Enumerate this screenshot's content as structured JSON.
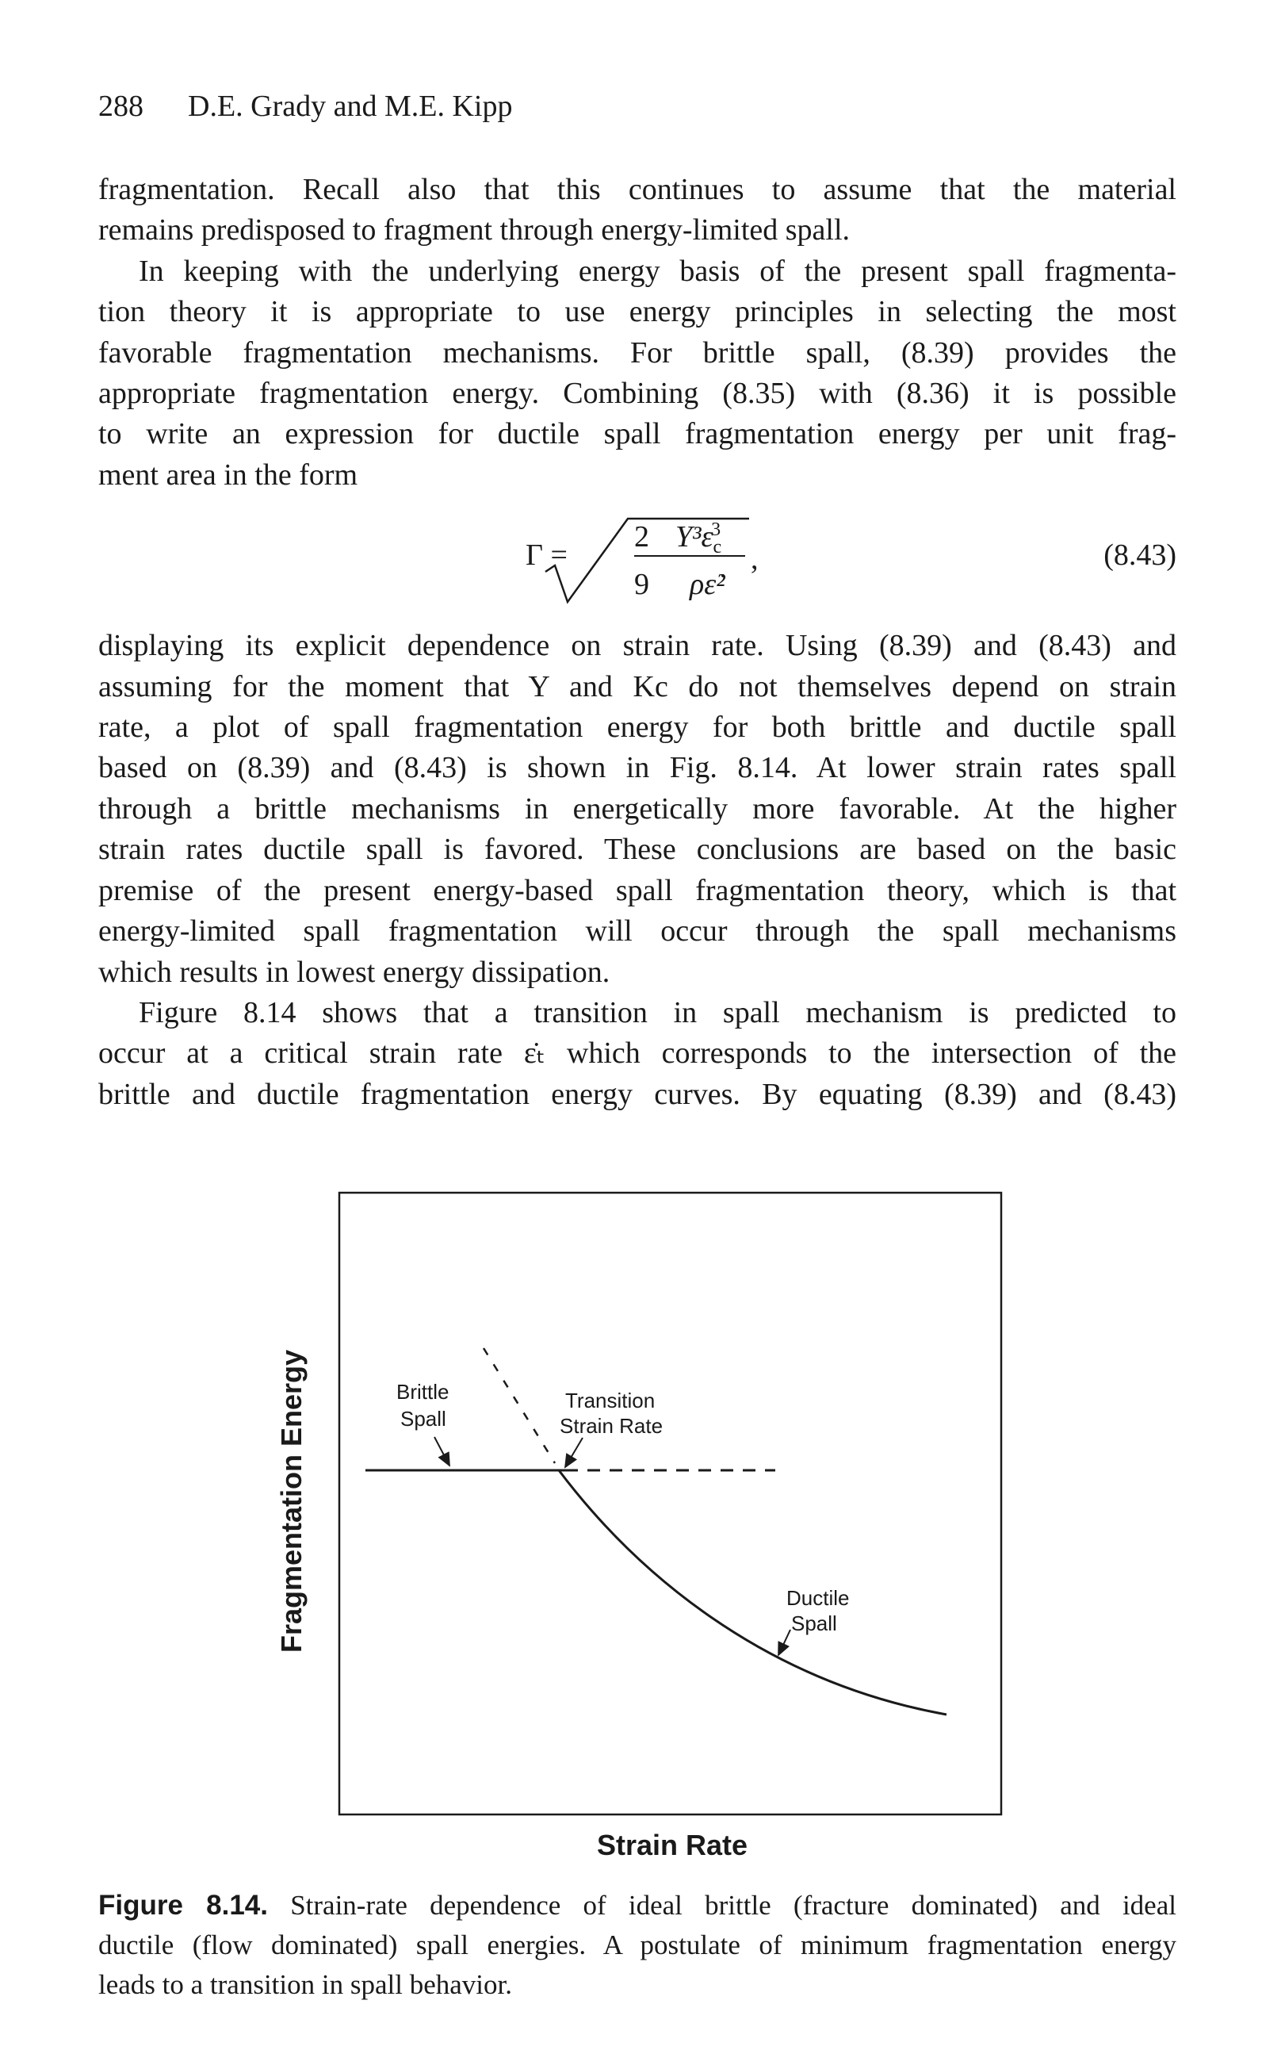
{
  "header": {
    "page_number": "288",
    "authors": "D.E. Grady and M.E. Kipp"
  },
  "paragraphs": [
    {
      "lines": [
        "fragmentation. Recall also that this continues to assume that the material",
        "remains predisposed to fragment through energy-limited spall."
      ]
    },
    {
      "lines": [
        "In keeping with the underlying energy basis of the present spall fragmenta-",
        "tion theory it is appropriate to use energy principles in selecting the most",
        "favorable fragmentation mechanisms. For brittle spall, (8.39) provides the",
        "appropriate fragmentation energy. Combining (8.35) with (8.36) it is possible",
        "to write an expression for ductile spall fragmentation energy per unit frag-",
        "ment area in the form"
      ]
    },
    {
      "lines": [
        "displaying its explicit dependence on strain rate. Using (8.39) and (8.43) and",
        "assuming for the moment that Y and Kc do not themselves depend on strain",
        "rate, a plot of spall fragmentation energy for both brittle and ductile spall",
        "based on (8.39) and (8.43) is shown in Fig. 8.14. At lower strain rates spall",
        "through a brittle mechanisms in energetically more favorable. At the higher",
        "strain rates ductile spall is favored. These conclusions are based on the basic",
        "premise of the present energy-based spall fragmentation theory, which is that",
        "energy-limited spall fragmentation will occur through the spall mechanisms",
        "which results in lowest energy dissipation."
      ]
    },
    {
      "lines": [
        "Figure 8.14 shows that a transition in spall mechanism is predicted to",
        "occur at a critical strain rate ε̇ₜ which corresponds to the intersection of the",
        "brittle and ductile fragmentation energy curves. By equating (8.39) and (8.43)"
      ]
    }
  ],
  "equation": {
    "lhs": "Γ =",
    "coef_num": "2",
    "coef_den": "9",
    "num": "Y³ε",
    "num_sub": "c",
    "num_sup": "3",
    "den": "ρε̇²",
    "comma": ",",
    "number": "(8.43)"
  },
  "figure": {
    "y_axis_label": "Fragmentation Energy",
    "x_axis_label": "Strain Rate",
    "brittle_label": [
      "Brittle",
      "Spall"
    ],
    "transition_label": [
      "Transition",
      "Strain Rate"
    ],
    "ductile_label": [
      "Ductile",
      "Spall"
    ]
  },
  "caption": {
    "label": "Figure 8.14.",
    "lines": [
      "Strain-rate dependence of ideal brittle (fracture dominated) and ideal",
      "ductile (flow dominated) spall energies. A postulate of minimum fragmentation energy",
      "leads to a transition in spall behavior."
    ]
  }
}
